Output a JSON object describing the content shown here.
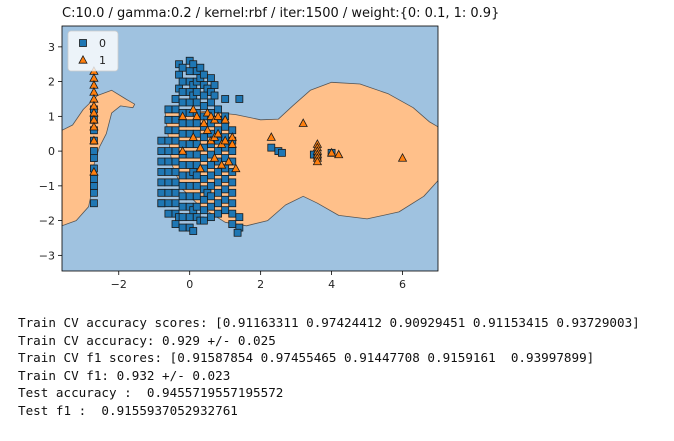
{
  "chart_data": {
    "type": "scatter",
    "title": "C:10.0 / gamma:0.2 / kernel:rbf / iter:1500 / weight:{0: 0.1, 1: 0.9}",
    "xlabel": "",
    "ylabel": "",
    "xlim": [
      -3.6,
      7.0
    ],
    "ylim": [
      -3.45,
      3.6
    ],
    "x_ticks": [
      -2,
      0,
      2,
      4,
      6
    ],
    "y_ticks": [
      -3,
      -2,
      -1,
      0,
      1,
      2,
      3
    ],
    "grid": false,
    "legend_position": "top-left",
    "background_region_label": "0",
    "decision_regions": [
      {
        "label": "1",
        "points": [
          [
            -3.6,
            0.6
          ],
          [
            -3.3,
            0.75
          ],
          [
            -3.0,
            1.2
          ],
          [
            -2.6,
            1.6
          ],
          [
            -2.2,
            1.75
          ],
          [
            -1.8,
            1.5
          ],
          [
            -1.55,
            1.35
          ],
          [
            -1.6,
            1.25
          ],
          [
            -1.95,
            1.3
          ],
          [
            -2.2,
            1.1
          ],
          [
            -2.35,
            0.5
          ],
          [
            -2.55,
            0.1
          ],
          [
            -2.7,
            -0.4
          ],
          [
            -2.75,
            -1.1
          ],
          [
            -2.85,
            -1.6
          ],
          [
            -3.2,
            -2.0
          ],
          [
            -3.6,
            -2.15
          ]
        ]
      },
      {
        "label": "1",
        "points": [
          [
            -0.7,
            1.15
          ],
          [
            0.3,
            1.15
          ],
          [
            1.3,
            1.05
          ],
          [
            2.0,
            0.9
          ],
          [
            2.5,
            0.92
          ],
          [
            2.9,
            1.3
          ],
          [
            3.4,
            1.75
          ],
          [
            4.0,
            1.98
          ],
          [
            4.8,
            1.93
          ],
          [
            5.6,
            1.65
          ],
          [
            6.3,
            1.25
          ],
          [
            6.75,
            0.85
          ],
          [
            7.0,
            0.7
          ],
          [
            7.0,
            -0.85
          ],
          [
            6.6,
            -1.3
          ],
          [
            5.9,
            -1.75
          ],
          [
            5.0,
            -1.95
          ],
          [
            4.2,
            -1.85
          ],
          [
            3.6,
            -1.5
          ],
          [
            3.2,
            -1.3
          ],
          [
            2.7,
            -1.55
          ],
          [
            2.2,
            -2.0
          ],
          [
            1.6,
            -2.15
          ],
          [
            1.0,
            -2.05
          ],
          [
            0.3,
            -1.6
          ],
          [
            -0.2,
            -1.1
          ],
          [
            -0.5,
            -0.4
          ],
          [
            -0.6,
            0.4
          ]
        ]
      }
    ],
    "series": [
      {
        "name": "0",
        "marker": "square",
        "color": "#1f77b4",
        "points": [
          [
            -2.7,
            -1.2
          ],
          [
            -2.7,
            -1.0
          ],
          [
            -2.7,
            -0.8
          ],
          [
            -2.7,
            -0.5
          ],
          [
            -2.7,
            -0.2
          ],
          [
            -2.7,
            0.0
          ],
          [
            -2.7,
            0.3
          ],
          [
            -2.7,
            0.6
          ],
          [
            -2.7,
            0.9
          ],
          [
            -2.7,
            1.2
          ],
          [
            -2.7,
            -1.5
          ],
          [
            -0.8,
            0.0
          ],
          [
            -0.8,
            -0.3
          ],
          [
            -0.8,
            -0.6
          ],
          [
            -0.8,
            -0.9
          ],
          [
            -0.8,
            -1.2
          ],
          [
            -0.8,
            -1.5
          ],
          [
            -0.8,
            -1.5
          ],
          [
            -0.8,
            0.3
          ],
          [
            -0.6,
            1.2
          ],
          [
            -0.6,
            0.9
          ],
          [
            -0.6,
            0.6
          ],
          [
            -0.6,
            0.3
          ],
          [
            -0.6,
            0.0
          ],
          [
            -0.6,
            -0.3
          ],
          [
            -0.6,
            -0.6
          ],
          [
            -0.6,
            -0.9
          ],
          [
            -0.6,
            -1.2
          ],
          [
            -0.6,
            -1.5
          ],
          [
            -0.6,
            -1.8
          ],
          [
            -0.4,
            1.5
          ],
          [
            -0.4,
            1.2
          ],
          [
            -0.4,
            0.9
          ],
          [
            -0.4,
            0.6
          ],
          [
            -0.4,
            0.3
          ],
          [
            -0.4,
            0.0
          ],
          [
            -0.4,
            -0.3
          ],
          [
            -0.4,
            -0.6
          ],
          [
            -0.4,
            -0.9
          ],
          [
            -0.4,
            -1.2
          ],
          [
            -0.4,
            -1.5
          ],
          [
            -0.4,
            -1.8
          ],
          [
            -0.4,
            -2.1
          ],
          [
            -0.3,
            2.2
          ],
          [
            -0.3,
            2.5
          ],
          [
            -0.3,
            1.8
          ],
          [
            -0.3,
            -1.9
          ],
          [
            -0.2,
            2.4
          ],
          [
            -0.2,
            2.0
          ],
          [
            -0.2,
            1.7
          ],
          [
            -0.2,
            1.4
          ],
          [
            -0.2,
            1.1
          ],
          [
            -0.2,
            0.8
          ],
          [
            -0.2,
            0.5
          ],
          [
            -0.2,
            0.2
          ],
          [
            -0.2,
            -0.1
          ],
          [
            -0.2,
            -0.4
          ],
          [
            -0.2,
            -0.7
          ],
          [
            -0.2,
            -1.0
          ],
          [
            -0.2,
            -1.3
          ],
          [
            -0.2,
            -1.6
          ],
          [
            -0.2,
            -1.9
          ],
          [
            -0.2,
            -2.2
          ],
          [
            0.0,
            2.6
          ],
          [
            0.0,
            2.3
          ],
          [
            0.0,
            2.0
          ],
          [
            0.0,
            1.7
          ],
          [
            0.0,
            1.4
          ],
          [
            0.0,
            1.1
          ],
          [
            0.0,
            0.8
          ],
          [
            0.0,
            0.5
          ],
          [
            0.0,
            0.2
          ],
          [
            0.0,
            -0.1
          ],
          [
            0.0,
            -0.4
          ],
          [
            0.0,
            -0.7
          ],
          [
            0.0,
            -1.0
          ],
          [
            0.0,
            -1.3
          ],
          [
            0.0,
            -1.6
          ],
          [
            0.0,
            -1.9
          ],
          [
            0.0,
            -2.2
          ],
          [
            0.1,
            2.5
          ],
          [
            0.1,
            1.9
          ],
          [
            0.1,
            1.6
          ],
          [
            0.1,
            -0.6
          ],
          [
            0.1,
            -1.7
          ],
          [
            0.1,
            -2.3
          ],
          [
            0.2,
            2.3
          ],
          [
            0.2,
            2.0
          ],
          [
            0.2,
            1.7
          ],
          [
            0.2,
            1.4
          ],
          [
            0.2,
            1.1
          ],
          [
            0.2,
            0.8
          ],
          [
            0.2,
            0.5
          ],
          [
            0.2,
            0.2
          ],
          [
            0.2,
            -0.1
          ],
          [
            0.2,
            -0.4
          ],
          [
            0.2,
            -0.7
          ],
          [
            0.2,
            -1.0
          ],
          [
            0.2,
            -1.3
          ],
          [
            0.2,
            -1.6
          ],
          [
            0.2,
            -1.9
          ],
          [
            0.3,
            2.4
          ],
          [
            0.3,
            2.1
          ],
          [
            0.3,
            -2.0
          ],
          [
            0.4,
            2.2
          ],
          [
            0.4,
            1.9
          ],
          [
            0.4,
            1.6
          ],
          [
            0.4,
            1.3
          ],
          [
            0.4,
            1.0
          ],
          [
            0.4,
            0.7
          ],
          [
            0.4,
            0.4
          ],
          [
            0.4,
            0.1
          ],
          [
            0.4,
            -0.2
          ],
          [
            0.4,
            -0.5
          ],
          [
            0.4,
            -0.8
          ],
          [
            0.4,
            -1.1
          ],
          [
            0.4,
            -1.4
          ],
          [
            0.4,
            -1.7
          ],
          [
            0.4,
            -2.0
          ],
          [
            0.5,
            1.8
          ],
          [
            0.5,
            -1.2
          ],
          [
            0.6,
            2.1
          ],
          [
            0.6,
            1.7
          ],
          [
            0.6,
            1.4
          ],
          [
            0.6,
            1.1
          ],
          [
            0.6,
            0.8
          ],
          [
            0.6,
            0.5
          ],
          [
            0.6,
            0.2
          ],
          [
            0.6,
            -0.1
          ],
          [
            0.6,
            -0.4
          ],
          [
            0.6,
            -0.7
          ],
          [
            0.6,
            -1.0
          ],
          [
            0.6,
            -1.3
          ],
          [
            0.6,
            -1.6
          ],
          [
            0.6,
            -1.9
          ],
          [
            0.7,
            1.9
          ],
          [
            0.7,
            1.6
          ],
          [
            0.8,
            1.2
          ],
          [
            0.8,
            0.9
          ],
          [
            0.8,
            0.6
          ],
          [
            0.8,
            0.3
          ],
          [
            0.8,
            0.0
          ],
          [
            0.8,
            -0.3
          ],
          [
            0.8,
            -0.6
          ],
          [
            0.8,
            -0.9
          ],
          [
            0.8,
            -1.2
          ],
          [
            0.8,
            -1.5
          ],
          [
            0.8,
            -1.8
          ],
          [
            1.0,
            1.5
          ],
          [
            1.0,
            1.0
          ],
          [
            1.0,
            0.7
          ],
          [
            1.0,
            0.4
          ],
          [
            1.0,
            0.1
          ],
          [
            1.0,
            -0.2
          ],
          [
            1.0,
            -0.5
          ],
          [
            1.0,
            -0.8
          ],
          [
            1.0,
            -1.1
          ],
          [
            1.0,
            -1.4
          ],
          [
            1.0,
            -1.7
          ],
          [
            1.2,
            0.6
          ],
          [
            1.2,
            0.3
          ],
          [
            1.2,
            0.0
          ],
          [
            1.2,
            -0.3
          ],
          [
            1.2,
            -0.6
          ],
          [
            1.2,
            -0.9
          ],
          [
            1.2,
            -1.2
          ],
          [
            1.2,
            -1.5
          ],
          [
            1.2,
            -1.8
          ],
          [
            1.2,
            -2.1
          ],
          [
            1.4,
            1.5
          ],
          [
            1.4,
            -1.9
          ],
          [
            1.4,
            -2.2
          ],
          [
            1.35,
            -2.35
          ],
          [
            2.3,
            0.1
          ],
          [
            2.5,
            0.0
          ],
          [
            2.6,
            -0.05
          ],
          [
            3.5,
            -0.1
          ],
          [
            3.6,
            -0.15
          ],
          [
            4.0,
            -0.05
          ]
        ]
      },
      {
        "name": "1",
        "marker": "triangle",
        "color": "#ff7f0e",
        "points": [
          [
            -2.7,
            2.3
          ],
          [
            -2.7,
            2.1
          ],
          [
            -2.7,
            1.9
          ],
          [
            -2.7,
            1.7
          ],
          [
            -2.7,
            1.5
          ],
          [
            -2.7,
            1.3
          ],
          [
            -2.7,
            1.1
          ],
          [
            -2.7,
            0.9
          ],
          [
            -2.7,
            0.7
          ],
          [
            -2.7,
            0.3
          ],
          [
            -2.7,
            -0.6
          ],
          [
            -0.2,
            1.0
          ],
          [
            -0.2,
            0.0
          ],
          [
            0.1,
            1.2
          ],
          [
            0.1,
            0.4
          ],
          [
            0.2,
            1.0
          ],
          [
            0.3,
            0.1
          ],
          [
            0.3,
            -0.5
          ],
          [
            0.4,
            0.8
          ],
          [
            0.5,
            1.1
          ],
          [
            0.5,
            0.6
          ],
          [
            0.6,
            1.0
          ],
          [
            0.6,
            0.3
          ],
          [
            0.7,
            0.9
          ],
          [
            0.7,
            0.4
          ],
          [
            0.7,
            -0.2
          ],
          [
            0.8,
            1.0
          ],
          [
            0.8,
            0.5
          ],
          [
            0.9,
            0.2
          ],
          [
            0.9,
            -0.4
          ],
          [
            1.0,
            0.9
          ],
          [
            1.0,
            0.3
          ],
          [
            1.1,
            -0.3
          ],
          [
            1.2,
            0.4
          ],
          [
            1.3,
            -0.5
          ],
          [
            1.2,
            0.2
          ],
          [
            2.3,
            0.4
          ],
          [
            3.2,
            0.8
          ],
          [
            3.6,
            0.2
          ],
          [
            3.6,
            0.1
          ],
          [
            3.6,
            0.0
          ],
          [
            3.6,
            -0.1
          ],
          [
            3.6,
            -0.2
          ],
          [
            3.6,
            -0.3
          ],
          [
            4.0,
            -0.05
          ],
          [
            4.2,
            -0.1
          ],
          [
            6.0,
            -0.2
          ]
        ]
      }
    ]
  },
  "console_output": [
    "Train CV accuracy scores: [0.91163311 0.97424412 0.90929451 0.91153415 0.93729003]",
    "Train CV accuracy: 0.929 +/- 0.025",
    "Train CV f1 scores: [0.91587854 0.97455465 0.91447708 0.9159161  0.93997899]",
    "Train CV f1: 0.932 +/- 0.023",
    "Test accuracy :  0.9455719557195572",
    "Test f1 :  0.9155937052932761"
  ],
  "colors": {
    "class0_region": "#9fc2e0",
    "class1_region": "#ffc08a",
    "class0_marker": "#1f77b4",
    "class1_marker": "#ff7f0e",
    "boundary": "#555555"
  }
}
